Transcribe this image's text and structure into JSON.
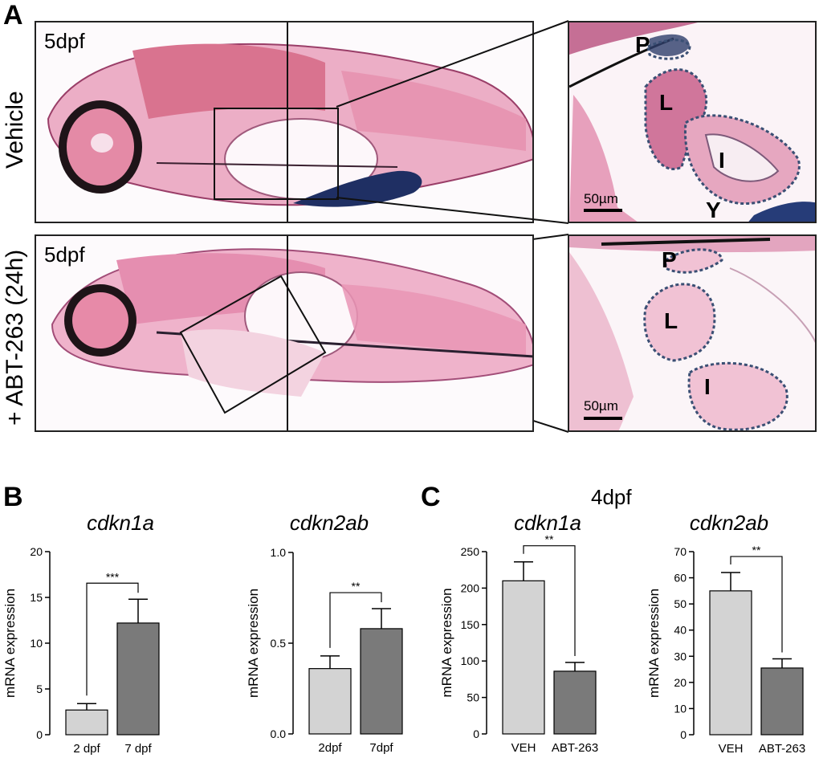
{
  "panels": {
    "a": "A",
    "b": "B",
    "c": "C"
  },
  "panel_a": {
    "row1": {
      "label": "Vehicle",
      "stage": "5dpf",
      "zoom_labels": {
        "p": "P",
        "l": "L",
        "i": "I",
        "y": "Y"
      },
      "scalebar": "50µm"
    },
    "row2": {
      "label": "+ ABT-263 (24h)",
      "stage": "5dpf",
      "zoom_labels": {
        "p": "P",
        "l": "L",
        "i": "I"
      },
      "scalebar": "50µm"
    }
  },
  "panel_c_header": "4dpf",
  "colors": {
    "light_bar": "#d3d3d3",
    "dark_bar": "#7a7a7a",
    "tissue_pink": "#e79ab6",
    "tissue_dark": "#2a2030",
    "outline_blue": "#3a4f74"
  },
  "chart_data": [
    {
      "type": "bar",
      "title": "cdkn1a",
      "ylabel": "mRNA expression",
      "categories": [
        "2 dpf",
        "7 dpf"
      ],
      "values": [
        2.7,
        12.2
      ],
      "errors": [
        0.7,
        2.6
      ],
      "ylim": [
        0,
        20
      ],
      "yticks": [
        "0",
        "5",
        "10",
        "15",
        "20"
      ],
      "significance": "***"
    },
    {
      "type": "bar",
      "title": "cdkn2ab",
      "ylabel": "mRNA expression",
      "categories": [
        "2dpf",
        "7dpf"
      ],
      "values": [
        0.36,
        0.58
      ],
      "errors": [
        0.07,
        0.11
      ],
      "ylim": [
        0,
        1
      ],
      "yticks": [
        "0.0",
        "0.5",
        "1.0"
      ],
      "significance": "**"
    },
    {
      "type": "bar",
      "title": "cdkn1a",
      "ylabel": "mRNA expression",
      "categories": [
        "VEH",
        "ABT-263"
      ],
      "values": [
        210,
        86
      ],
      "errors": [
        26,
        12
      ],
      "ylim": [
        0,
        250
      ],
      "yticks": [
        "0",
        "50",
        "100",
        "150",
        "200",
        "250"
      ],
      "significance": "**"
    },
    {
      "type": "bar",
      "title": "cdkn2ab",
      "ylabel": "mRNA expression",
      "categories": [
        "VEH",
        "ABT-263"
      ],
      "values": [
        55,
        25.5
      ],
      "errors": [
        7,
        3.5
      ],
      "ylim": [
        0,
        70
      ],
      "yticks": [
        "0",
        "10",
        "20",
        "30",
        "40",
        "50",
        "60",
        "70"
      ],
      "significance": "**"
    }
  ]
}
